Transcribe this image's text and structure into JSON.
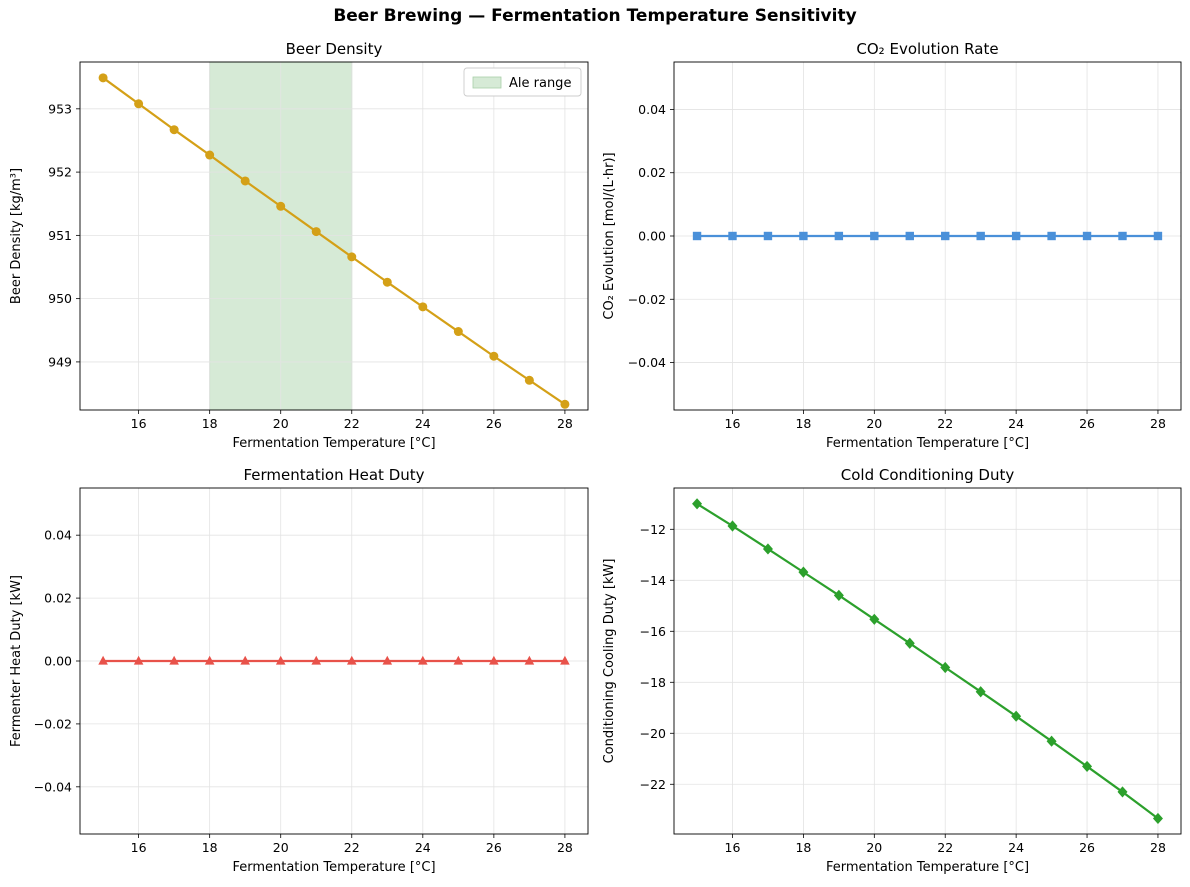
{
  "figure": {
    "title": "Beer Brewing — Fermentation Temperature Sensitivity"
  },
  "chart_data": [
    {
      "type": "line",
      "title": "Beer Density",
      "xlabel": "Fermentation Temperature [°C]",
      "ylabel": "Beer Density [kg/m³]",
      "xlim": [
        14.35,
        28.65
      ],
      "ylim": [
        948.24,
        953.74
      ],
      "xticks": [
        16,
        18,
        20,
        22,
        24,
        26,
        28
      ],
      "yticks": [
        949,
        950,
        951,
        952,
        953
      ],
      "grid": true,
      "legend": "top-right",
      "shaded_regions": [
        {
          "x0": 18,
          "x1": 22,
          "label": "Ale range",
          "color": "#d6ead6"
        }
      ],
      "series": [
        {
          "color": "#d4a017",
          "marker": "circle",
          "x": [
            15,
            16,
            17,
            18,
            19,
            20,
            21,
            22,
            23,
            24,
            25,
            26,
            27,
            28
          ],
          "y": [
            953.49,
            953.08,
            952.67,
            952.27,
            951.86,
            951.46,
            951.06,
            950.66,
            950.26,
            949.87,
            949.48,
            949.09,
            948.71,
            948.33
          ]
        }
      ]
    },
    {
      "type": "line",
      "title": "CO₂ Evolution Rate",
      "xlabel": "Fermentation Temperature [°C]",
      "ylabel": "CO₂ Evolution [mol/(L·hr)]",
      "xlim": [
        14.35,
        28.65
      ],
      "ylim": [
        -0.055,
        0.055
      ],
      "xticks": [
        16,
        18,
        20,
        22,
        24,
        26,
        28
      ],
      "yticks": [
        -0.04,
        -0.02,
        0.0,
        0.02,
        0.04
      ],
      "ytick_labels": [
        "−0.04",
        "−0.02",
        "0.00",
        "0.02",
        "0.04"
      ],
      "grid": true,
      "series": [
        {
          "color": "#4a90d9",
          "marker": "square",
          "x": [
            15,
            16,
            17,
            18,
            19,
            20,
            21,
            22,
            23,
            24,
            25,
            26,
            27,
            28
          ],
          "y": [
            0,
            0,
            0,
            0,
            0,
            0,
            0,
            0,
            0,
            0,
            0,
            0,
            0,
            0
          ]
        }
      ]
    },
    {
      "type": "line",
      "title": "Fermentation Heat Duty",
      "xlabel": "Fermentation Temperature [°C]",
      "ylabel": "Fermenter Heat Duty [kW]",
      "xlim": [
        14.35,
        28.65
      ],
      "ylim": [
        -0.055,
        0.055
      ],
      "xticks": [
        16,
        18,
        20,
        22,
        24,
        26,
        28
      ],
      "yticks": [
        -0.04,
        -0.02,
        0.0,
        0.02,
        0.04
      ],
      "ytick_labels": [
        "−0.04",
        "−0.02",
        "0.00",
        "0.02",
        "0.04"
      ],
      "grid": true,
      "series": [
        {
          "color": "#e8524a",
          "marker": "triangle",
          "x": [
            15,
            16,
            17,
            18,
            19,
            20,
            21,
            22,
            23,
            24,
            25,
            26,
            27,
            28
          ],
          "y": [
            0,
            0,
            0,
            0,
            0,
            0,
            0,
            0,
            0,
            0,
            0,
            0,
            0,
            0
          ]
        }
      ]
    },
    {
      "type": "line",
      "title": "Cold Conditioning Duty",
      "xlabel": "Fermentation Temperature [°C]",
      "ylabel": "Conditioning Cooling Duty [kW]",
      "xlim": [
        14.35,
        28.65
      ],
      "ylim": [
        -23.95,
        -10.38
      ],
      "xticks": [
        16,
        18,
        20,
        22,
        24,
        26,
        28
      ],
      "yticks": [
        -22,
        -20,
        -18,
        -16,
        -14,
        -12
      ],
      "ytick_labels": [
        "−22",
        "−20",
        "−18",
        "−16",
        "−14",
        "−12"
      ],
      "grid": true,
      "series": [
        {
          "color": "#2ca02c",
          "marker": "diamond",
          "x": [
            15,
            16,
            17,
            18,
            19,
            20,
            21,
            22,
            23,
            24,
            25,
            26,
            27,
            28
          ],
          "y": [
            -11.0,
            -11.87,
            -12.77,
            -13.68,
            -14.59,
            -15.53,
            -16.47,
            -17.42,
            -18.37,
            -19.33,
            -20.31,
            -21.3,
            -22.3,
            -23.34
          ]
        }
      ]
    }
  ]
}
